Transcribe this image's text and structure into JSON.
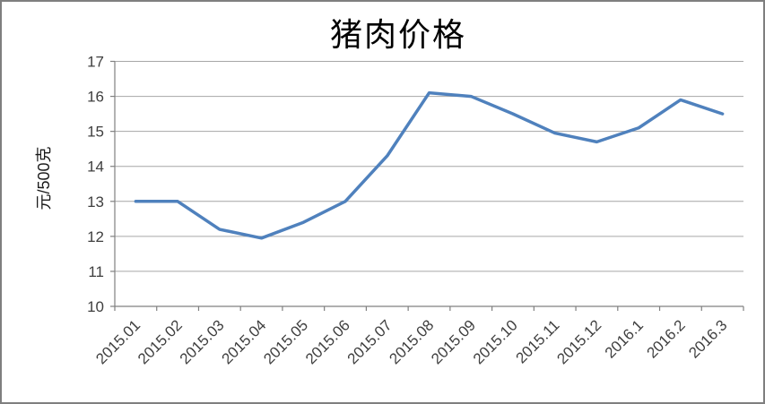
{
  "chart_data": {
    "type": "line",
    "title": "猪肉价格",
    "xlabel": "",
    "ylabel": "元/500克",
    "categories": [
      "2015.01",
      "2015.02",
      "2015.03",
      "2015.04",
      "2015.05",
      "2015.06",
      "2015.07",
      "2015.08",
      "2015.09",
      "2015.10",
      "2015.11",
      "2015.12",
      "2016.1",
      "2016.2",
      "2016.3"
    ],
    "values": [
      13,
      13,
      12.2,
      11.95,
      12.4,
      13,
      14.3,
      16.1,
      16,
      15.5,
      14.95,
      14.7,
      15.1,
      15.9,
      15.5
    ],
    "ylim": [
      10,
      17
    ],
    "ytick_interval": 1,
    "ytick_labels": [
      "10",
      "11",
      "12",
      "13",
      "14",
      "15",
      "16",
      "17"
    ],
    "grid": "horizontal-on",
    "legend": "none",
    "colors": {
      "line": "#4F81BD",
      "gridline": "#A6A6A6",
      "axis": "#808080",
      "tick_text": "#3F3F3F",
      "title_text": "#000000",
      "frame_border": "#7F7F7F",
      "background": "#FFFFFF"
    }
  }
}
